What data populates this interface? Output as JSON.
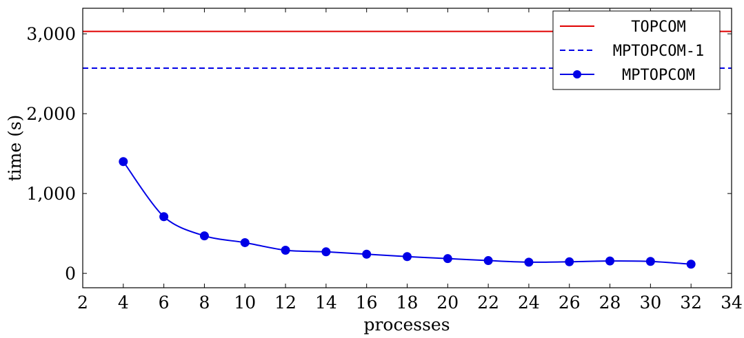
{
  "chart_data": {
    "type": "line",
    "xlabel": "processes",
    "ylabel": "time (s)",
    "xlim": [
      2,
      34
    ],
    "ylim": [
      -180,
      3320
    ],
    "xticks": [
      2,
      4,
      6,
      8,
      10,
      12,
      14,
      16,
      18,
      20,
      22,
      24,
      26,
      28,
      30,
      32,
      34
    ],
    "yticks": [
      0,
      1000,
      2000,
      3000
    ],
    "ytick_labels": [
      "0",
      "1,000",
      "2,000",
      "3,000"
    ],
    "grid": false,
    "legend_position": "top-right",
    "series": [
      {
        "name": "TOPCOM",
        "kind": "hline",
        "y": 3030,
        "color": "#e00000",
        "style": "solid"
      },
      {
        "name": "MPTOPCOM-1",
        "kind": "hline",
        "y": 2570,
        "color": "#0000e6",
        "style": "dashed"
      },
      {
        "name": "MPTOPCOM",
        "kind": "line-markers",
        "color": "#0000e6",
        "style": "solid",
        "x": [
          4,
          6,
          8,
          10,
          12,
          14,
          16,
          18,
          20,
          22,
          24,
          26,
          28,
          30,
          32
        ],
        "y": [
          1400,
          710,
          470,
          385,
          290,
          270,
          240,
          210,
          185,
          160,
          140,
          145,
          155,
          150,
          115
        ]
      }
    ]
  }
}
